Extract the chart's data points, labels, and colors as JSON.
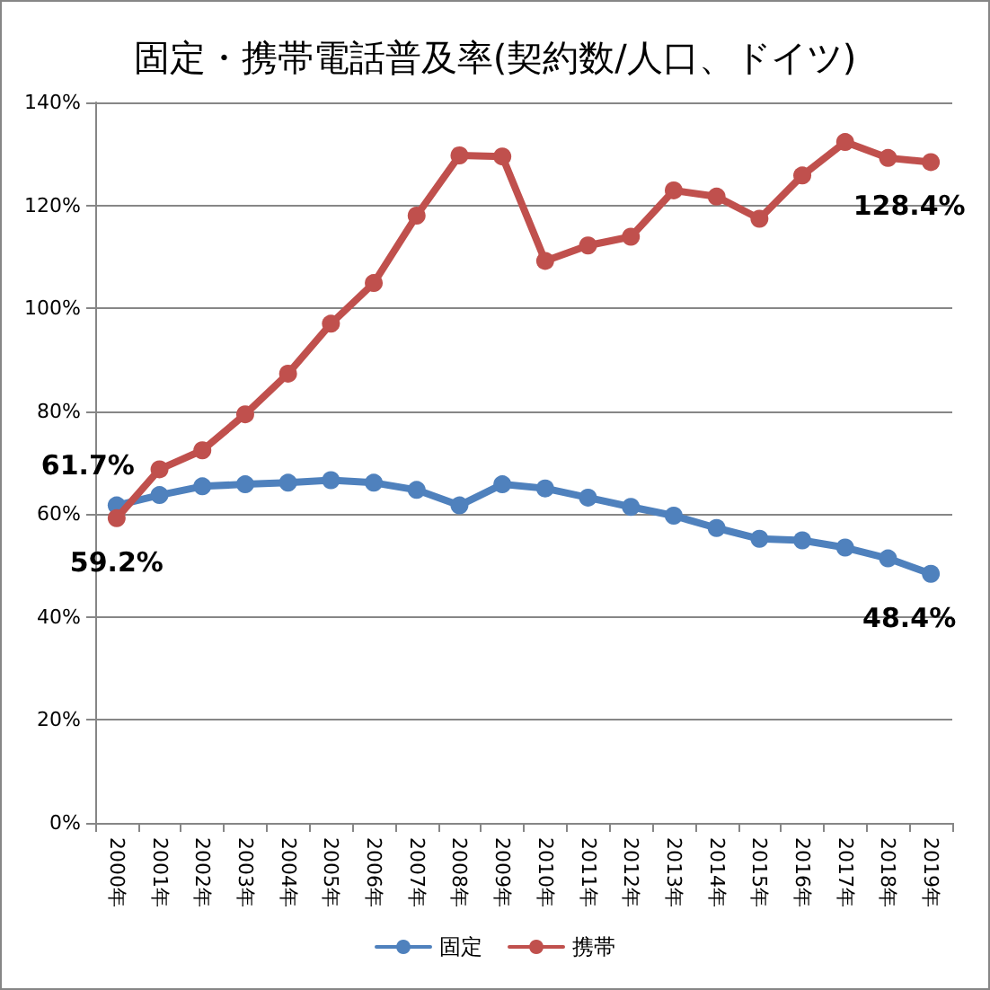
{
  "chart_data": {
    "type": "line",
    "title": "固定・携帯電話普及率(契約数/人口、ドイツ)",
    "categories": [
      "2000年",
      "2001年",
      "2002年",
      "2003年",
      "2004年",
      "2005年",
      "2006年",
      "2007年",
      "2008年",
      "2009年",
      "2010年",
      "2011年",
      "2012年",
      "2013年",
      "2014年",
      "2015年",
      "2016年",
      "2017年",
      "2018年",
      "2019年"
    ],
    "series": [
      {
        "name": "固定",
        "color": "#4f81bd",
        "values": [
          61.7,
          63.7,
          65.4,
          65.8,
          66.1,
          66.6,
          66.1,
          64.7,
          61.7,
          65.8,
          65.0,
          63.2,
          61.4,
          59.7,
          57.3,
          55.2,
          54.9,
          53.5,
          51.4,
          48.4
        ],
        "value_labels": [
          "61.7%",
          null,
          null,
          null,
          null,
          null,
          null,
          null,
          null,
          null,
          null,
          null,
          null,
          null,
          null,
          null,
          null,
          null,
          null,
          "48.4%"
        ]
      },
      {
        "name": "携帯",
        "color": "#c0504d",
        "values": [
          59.2,
          68.7,
          72.4,
          79.4,
          87.3,
          97.0,
          104.9,
          118.0,
          129.7,
          129.5,
          109.2,
          112.2,
          113.9,
          122.9,
          121.7,
          117.4,
          125.8,
          132.3,
          129.2,
          128.4
        ],
        "value_labels": [
          "59.2%",
          null,
          null,
          null,
          null,
          null,
          null,
          null,
          null,
          null,
          null,
          null,
          null,
          null,
          null,
          null,
          null,
          null,
          null,
          "128.4%"
        ]
      }
    ],
    "ylim": [
      0,
      140
    ],
    "yticks": [
      {
        "value": 0,
        "label": "0%"
      },
      {
        "value": 20,
        "label": "20%"
      },
      {
        "value": 40,
        "label": "40%"
      },
      {
        "value": 60,
        "label": "60%"
      },
      {
        "value": 80,
        "label": "80%"
      },
      {
        "value": 100,
        "label": "100%"
      },
      {
        "value": 120,
        "label": "120%"
      },
      {
        "value": 140,
        "label": "140%"
      }
    ],
    "grid": "y",
    "legend": "bottom",
    "marker": "circle",
    "line_style": "solid"
  }
}
